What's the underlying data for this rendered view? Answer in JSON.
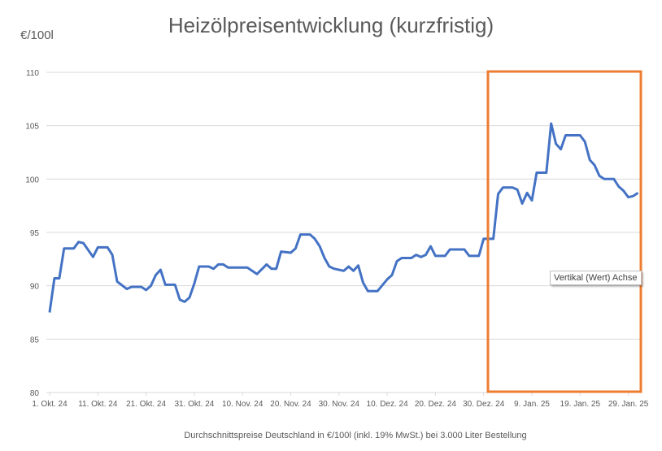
{
  "chart_data": {
    "type": "line",
    "title": "Heizölpreisentwicklung (kurzfristig)",
    "ylabel": "€/100l",
    "xlabel": "Durchschnittspreise Deutschland in €/100l (inkl. 19% MwSt.) bei 3.000 Liter Bestellung",
    "ylim": [
      80,
      110
    ],
    "yticks": [
      80,
      85,
      90,
      95,
      100,
      105,
      110
    ],
    "xlim": [
      "2024-10-01",
      "2025-01-31"
    ],
    "xtick_labels": [
      "1. Okt. 24",
      "11. Okt. 24",
      "21. Okt. 24",
      "31. Okt. 24",
      "10. Nov. 24",
      "20. Nov. 24",
      "30. Nov. 24",
      "10. Dez. 24",
      "20. Dez. 24",
      "30. Dez. 24",
      "9. Jan. 25",
      "19. Jan. 25",
      "29. Jan. 25"
    ],
    "xtick_dates": [
      "2024-10-01",
      "2024-10-11",
      "2024-10-21",
      "2024-10-31",
      "2024-11-10",
      "2024-11-20",
      "2024-11-30",
      "2024-12-10",
      "2024-12-20",
      "2024-12-30",
      "2025-01-09",
      "2025-01-19",
      "2025-01-29"
    ],
    "grid": true,
    "line_color": "#4472C4",
    "highlight": {
      "from": "2025-01-01",
      "to": "2025-01-31",
      "color": "#ED7D31"
    },
    "series": [
      {
        "x": [
          "2024-10-01",
          "2024-10-02",
          "2024-10-03",
          "2024-10-04",
          "2024-10-06",
          "2024-10-07",
          "2024-10-08",
          "2024-10-10",
          "2024-10-11",
          "2024-10-13",
          "2024-10-14",
          "2024-10-15",
          "2024-10-17",
          "2024-10-18",
          "2024-10-20",
          "2024-10-21",
          "2024-10-22",
          "2024-10-23",
          "2024-10-24",
          "2024-10-25",
          "2024-10-27",
          "2024-10-28",
          "2024-10-29",
          "2024-10-30",
          "2024-10-31",
          "2024-11-01",
          "2024-11-03",
          "2024-11-04",
          "2024-11-05",
          "2024-11-06",
          "2024-11-07",
          "2024-11-11",
          "2024-11-13",
          "2024-11-15",
          "2024-11-16",
          "2024-11-17",
          "2024-11-18",
          "2024-11-20",
          "2024-11-21",
          "2024-11-22",
          "2024-11-24",
          "2024-11-25",
          "2024-11-26",
          "2024-11-27",
          "2024-11-28",
          "2024-11-29",
          "2024-12-01",
          "2024-12-02",
          "2024-12-03",
          "2024-12-04",
          "2024-12-05",
          "2024-12-06",
          "2024-12-08",
          "2024-12-10",
          "2024-12-11",
          "2024-12-12",
          "2024-12-13",
          "2024-12-15",
          "2024-12-16",
          "2024-12-17",
          "2024-12-18",
          "2024-12-19",
          "2024-12-20",
          "2024-12-22",
          "2024-12-23",
          "2024-12-26",
          "2024-12-27",
          "2024-12-29",
          "2024-12-30",
          "2025-01-01",
          "2025-01-02",
          "2025-01-03",
          "2025-01-05",
          "2025-01-06",
          "2025-01-07",
          "2025-01-08",
          "2025-01-09",
          "2025-01-10",
          "2025-01-12",
          "2025-01-13",
          "2025-01-14",
          "2025-01-15",
          "2025-01-16",
          "2025-01-19",
          "2025-01-20",
          "2025-01-21",
          "2025-01-22",
          "2025-01-23",
          "2025-01-24",
          "2025-01-26",
          "2025-01-27",
          "2025-01-28",
          "2025-01-29",
          "2025-01-30",
          "2025-01-31"
        ],
        "values": [
          87.5,
          90.7,
          90.7,
          93.5,
          93.5,
          94.1,
          94.0,
          92.7,
          93.6,
          93.6,
          92.9,
          90.4,
          89.7,
          89.9,
          89.9,
          89.6,
          90.0,
          91.0,
          91.5,
          90.1,
          90.1,
          88.7,
          88.5,
          88.9,
          90.2,
          91.8,
          91.8,
          91.6,
          92.0,
          92.0,
          91.7,
          91.7,
          91.1,
          92.0,
          91.6,
          91.6,
          93.2,
          93.1,
          93.5,
          94.8,
          94.8,
          94.4,
          93.7,
          92.6,
          91.8,
          91.6,
          91.4,
          91.8,
          91.4,
          91.9,
          90.3,
          89.5,
          89.5,
          90.6,
          91.0,
          92.3,
          92.6,
          92.6,
          92.9,
          92.7,
          92.9,
          93.7,
          92.8,
          92.8,
          93.4,
          93.4,
          92.8,
          92.8,
          94.4,
          94.4,
          98.6,
          99.2,
          99.2,
          99.0,
          97.7,
          98.7,
          98.0,
          100.6,
          100.6,
          105.2,
          103.3,
          102.8,
          104.1,
          104.1,
          103.5,
          101.8,
          101.3,
          100.3,
          100.0,
          100.0,
          99.3,
          98.9,
          98.3,
          98.4,
          98.7
        ]
      }
    ]
  },
  "tooltip": "Vertikal (Wert) Achse"
}
